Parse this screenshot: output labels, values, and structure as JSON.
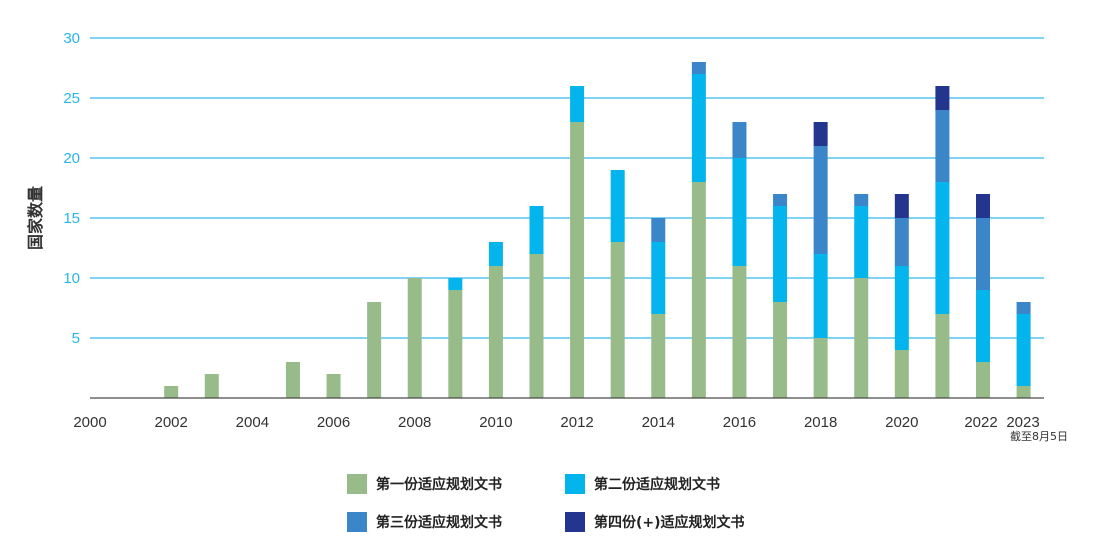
{
  "chart_data": {
    "type": "bar",
    "stacked": true,
    "ylabel": "国家数量",
    "ylim": [
      0,
      30
    ],
    "yticks": [
      "5",
      "10",
      "15",
      "20",
      "25",
      "30"
    ],
    "xticks": [
      "2000",
      "2002",
      "2004",
      "2006",
      "2008",
      "2010",
      "2012",
      "2014",
      "2016",
      "2018",
      "2020",
      "2022",
      "2023"
    ],
    "x_note": "截至8月5日",
    "grid": true,
    "legend_position": "bottom",
    "categories": [
      "2002",
      "2003",
      "2004",
      "2005",
      "2006",
      "2007",
      "2008",
      "2009",
      "2010",
      "2011",
      "2012",
      "2013",
      "2014",
      "2015",
      "2016",
      "2017",
      "2018",
      "2019",
      "2020",
      "2021",
      "2022",
      "2023"
    ],
    "series": [
      {
        "name": "第一份适应规划文书",
        "color": "#98bb8a",
        "values": [
          1,
          2,
          0,
          3,
          2,
          8,
          10,
          9,
          11,
          12,
          23,
          13,
          7,
          18,
          11,
          8,
          5,
          10,
          4,
          7,
          3,
          1
        ]
      },
      {
        "name": "第二份适应规划文书",
        "color": "#04b4ec",
        "values": [
          0,
          0,
          0,
          0,
          0,
          0,
          0,
          1,
          2,
          4,
          3,
          6,
          6,
          9,
          9,
          8,
          7,
          6,
          7,
          11,
          6,
          6
        ]
      },
      {
        "name": "第三份适应规划文书",
        "color": "#3b86c8",
        "values": [
          0,
          0,
          0,
          0,
          0,
          0,
          0,
          0,
          0,
          0,
          0,
          0,
          2,
          1,
          3,
          1,
          9,
          1,
          4,
          6,
          6,
          1
        ]
      },
      {
        "name": "第四份(+)适应规划文书",
        "color": "#23358f",
        "values": [
          0,
          0,
          0,
          0,
          0,
          0,
          0,
          0,
          0,
          0,
          0,
          0,
          0,
          0,
          0,
          0,
          2,
          0,
          2,
          2,
          2,
          0
        ]
      }
    ]
  }
}
